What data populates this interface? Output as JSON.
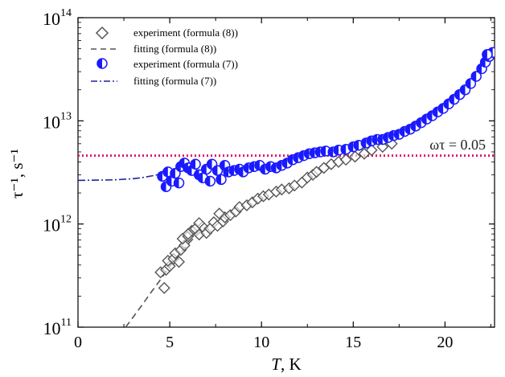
{
  "chart_data": {
    "type": "scatter",
    "xlabel_italic": "T",
    "xlabel_rest": ", K",
    "ylabel": "τ⁻¹, s⁻¹",
    "xlim": [
      0,
      22.7
    ],
    "ylim_log10": [
      11,
      14
    ],
    "yscale": "log",
    "x_ticks": [
      0,
      5,
      10,
      15,
      20
    ],
    "y_tick_exponents": [
      11,
      12,
      13,
      14
    ],
    "legend": {
      "placement": "top-left",
      "entries": [
        {
          "label": "experiment (formula (8))",
          "marker": "open-diamond",
          "color": "#555555"
        },
        {
          "label": "fitting (formula (8))",
          "marker": "dashed-line",
          "color": "#555555"
        },
        {
          "label": "experiment (formula (7))",
          "marker": "half-filled-circle",
          "color": "#1a1aff"
        },
        {
          "label": "fitting (formula (7))",
          "marker": "dash-dot-line",
          "color": "#22229a"
        }
      ]
    },
    "annotation": {
      "text": "ωτ = 0.05",
      "y_value": 4600000000000.0,
      "color": "#e0146e"
    },
    "series": [
      {
        "name": "experiment (formula (8))",
        "marker": "diamond",
        "color": "#555555",
        "points": [
          [
            4.7,
            240000000000.0
          ],
          [
            4.5,
            340000000000.0
          ],
          [
            4.8,
            360000000000.0
          ],
          [
            5.0,
            390000000000.0
          ],
          [
            4.9,
            440000000000.0
          ],
          [
            5.2,
            460000000000.0
          ],
          [
            5.5,
            430000000000.0
          ],
          [
            5.3,
            520000000000.0
          ],
          [
            5.6,
            560000000000.0
          ],
          [
            5.8,
            620000000000.0
          ],
          [
            5.7,
            720000000000.0
          ],
          [
            6.0,
            760000000000.0
          ],
          [
            6.2,
            860000000000.0
          ],
          [
            6.0,
            800000000000.0
          ],
          [
            6.4,
            900000000000.0
          ],
          [
            6.6,
            790000000000.0
          ],
          [
            6.8,
            940000000000.0
          ],
          [
            7.0,
            820000000000.0
          ],
          [
            7.2,
            900000000000.0
          ],
          [
            6.6,
            1020000000000.0
          ],
          [
            7.4,
            1040000000000.0
          ],
          [
            7.6,
            960000000000.0
          ],
          [
            7.9,
            1060000000000.0
          ],
          [
            8.0,
            1160000000000.0
          ],
          [
            8.3,
            1220000000000.0
          ],
          [
            7.7,
            1260000000000.0
          ],
          [
            8.6,
            1320000000000.0
          ],
          [
            8.8,
            1460000000000.0
          ],
          [
            9.2,
            1520000000000.0
          ],
          [
            9.5,
            1620000000000.0
          ],
          [
            9.8,
            1760000000000.0
          ],
          [
            10.1,
            1860000000000.0
          ],
          [
            10.4,
            1930000000000.0
          ],
          [
            10.8,
            2060000000000.0
          ],
          [
            11.1,
            2160000000000.0
          ],
          [
            11.5,
            2220000000000.0
          ],
          [
            11.8,
            2360000000000.0
          ],
          [
            12.2,
            2520000000000.0
          ],
          [
            12.5,
            2820000000000.0
          ],
          [
            12.8,
            3000000000000.0
          ],
          [
            13.0,
            3200000000000.0
          ],
          [
            13.4,
            3500000000000.0
          ],
          [
            13.8,
            3800000000000.0
          ],
          [
            14.2,
            4000000000000.0
          ],
          [
            14.6,
            4200000000000.0
          ],
          [
            15.1,
            4500000000000.0
          ],
          [
            15.6,
            4800000000000.0
          ],
          [
            16.0,
            5200000000000.0
          ],
          [
            16.6,
            5600000000000.0
          ],
          [
            17.1,
            6000000000000.0
          ]
        ]
      },
      {
        "name": "experiment (formula (7))",
        "marker": "half-filled-circle",
        "color": "#1a1aff",
        "points": [
          [
            4.6,
            2900000000000.0
          ],
          [
            4.8,
            2300000000000.0
          ],
          [
            4.9,
            3200000000000.0
          ],
          [
            5.1,
            2600000000000.0
          ],
          [
            5.3,
            3100000000000.0
          ],
          [
            5.5,
            2500000000000.0
          ],
          [
            5.6,
            3600000000000.0
          ],
          [
            5.8,
            3900000000000.0
          ],
          [
            6.0,
            3500000000000.0
          ],
          [
            6.2,
            3300000000000.0
          ],
          [
            6.4,
            3800000000000.0
          ],
          [
            6.6,
            3000000000000.0
          ],
          [
            6.8,
            2800000000000.0
          ],
          [
            7.0,
            3400000000000.0
          ],
          [
            7.2,
            2600000000000.0
          ],
          [
            7.3,
            3800000000000.0
          ],
          [
            7.6,
            3300000000000.0
          ],
          [
            7.8,
            2700000000000.0
          ],
          [
            8.0,
            3700000000000.0
          ],
          [
            8.2,
            3200000000000.0
          ],
          [
            8.5,
            3300000000000.0
          ],
          [
            8.8,
            3400000000000.0
          ],
          [
            9.0,
            3200000000000.0
          ],
          [
            9.3,
            3500000000000.0
          ],
          [
            9.6,
            3600000000000.0
          ],
          [
            9.9,
            3700000000000.0
          ],
          [
            10.2,
            3400000000000.0
          ],
          [
            10.5,
            3600000000000.0
          ],
          [
            10.8,
            3500000000000.0
          ],
          [
            11.1,
            3700000000000.0
          ],
          [
            11.4,
            3900000000000.0
          ],
          [
            11.7,
            4200000000000.0
          ],
          [
            12.0,
            4400000000000.0
          ],
          [
            12.3,
            4600000000000.0
          ],
          [
            12.6,
            4800000000000.0
          ],
          [
            12.9,
            4900000000000.0
          ],
          [
            13.2,
            5000000000000.0
          ],
          [
            13.5,
            5100000000000.0
          ],
          [
            13.9,
            5000000000000.0
          ],
          [
            14.2,
            5200000000000.0
          ],
          [
            14.6,
            5300000000000.0
          ],
          [
            15.0,
            5600000000000.0
          ],
          [
            15.3,
            5800000000000.0
          ],
          [
            15.7,
            6100000000000.0
          ],
          [
            16.0,
            6400000000000.0
          ],
          [
            16.3,
            6600000000000.0
          ],
          [
            16.6,
            6600000000000.0
          ],
          [
            16.9,
            6900000000000.0
          ],
          [
            17.2,
            7200000000000.0
          ],
          [
            17.5,
            7400000000000.0
          ],
          [
            17.8,
            7900000000000.0
          ],
          [
            18.1,
            8300000000000.0
          ],
          [
            18.4,
            8900000000000.0
          ],
          [
            18.7,
            9600000000000.0
          ],
          [
            19.0,
            10400000000000.0
          ],
          [
            19.3,
            11200000000000.0
          ],
          [
            19.6,
            12200000000000.0
          ],
          [
            19.9,
            13200000000000.0
          ],
          [
            20.2,
            14600000000000.0
          ],
          [
            20.5,
            16200000000000.0
          ],
          [
            20.8,
            18000000000000.0
          ],
          [
            21.1,
            20000000000000.0
          ],
          [
            21.4,
            23000000000000.0
          ],
          [
            21.7,
            27000000000000.0
          ],
          [
            22.0,
            32000000000000.0
          ],
          [
            22.2,
            37000000000000.0
          ],
          [
            22.4,
            42000000000000.0
          ],
          [
            22.6,
            46000000000000.0
          ],
          [
            22.3,
            44000000000000.0
          ]
        ]
      }
    ],
    "fits": [
      {
        "name": "fitting (formula (8))",
        "style": "dashed",
        "color": "#555555",
        "points": [
          [
            2.6,
            100000000000.0
          ],
          [
            3.0,
            125000000000.0
          ],
          [
            3.5,
            165000000000.0
          ],
          [
            4.0,
            220000000000.0
          ],
          [
            4.5,
            290000000000.0
          ],
          [
            5.0,
            390000000000.0
          ],
          [
            5.5,
            500000000000.0
          ],
          [
            6.0,
            640000000000.0
          ],
          [
            6.5,
            790000000000.0
          ],
          [
            7.0,
            950000000000.0
          ]
        ]
      },
      {
        "name": "fitting (formula (7))",
        "style": "dash-dot",
        "color": "#22229a",
        "points": [
          [
            0.0,
            2650000000000.0
          ],
          [
            1.0,
            2660000000000.0
          ],
          [
            2.0,
            2680000000000.0
          ],
          [
            3.0,
            2750000000000.0
          ],
          [
            3.5,
            2820000000000.0
          ],
          [
            4.0,
            2920000000000.0
          ],
          [
            4.5,
            3050000000000.0
          ]
        ]
      }
    ]
  }
}
